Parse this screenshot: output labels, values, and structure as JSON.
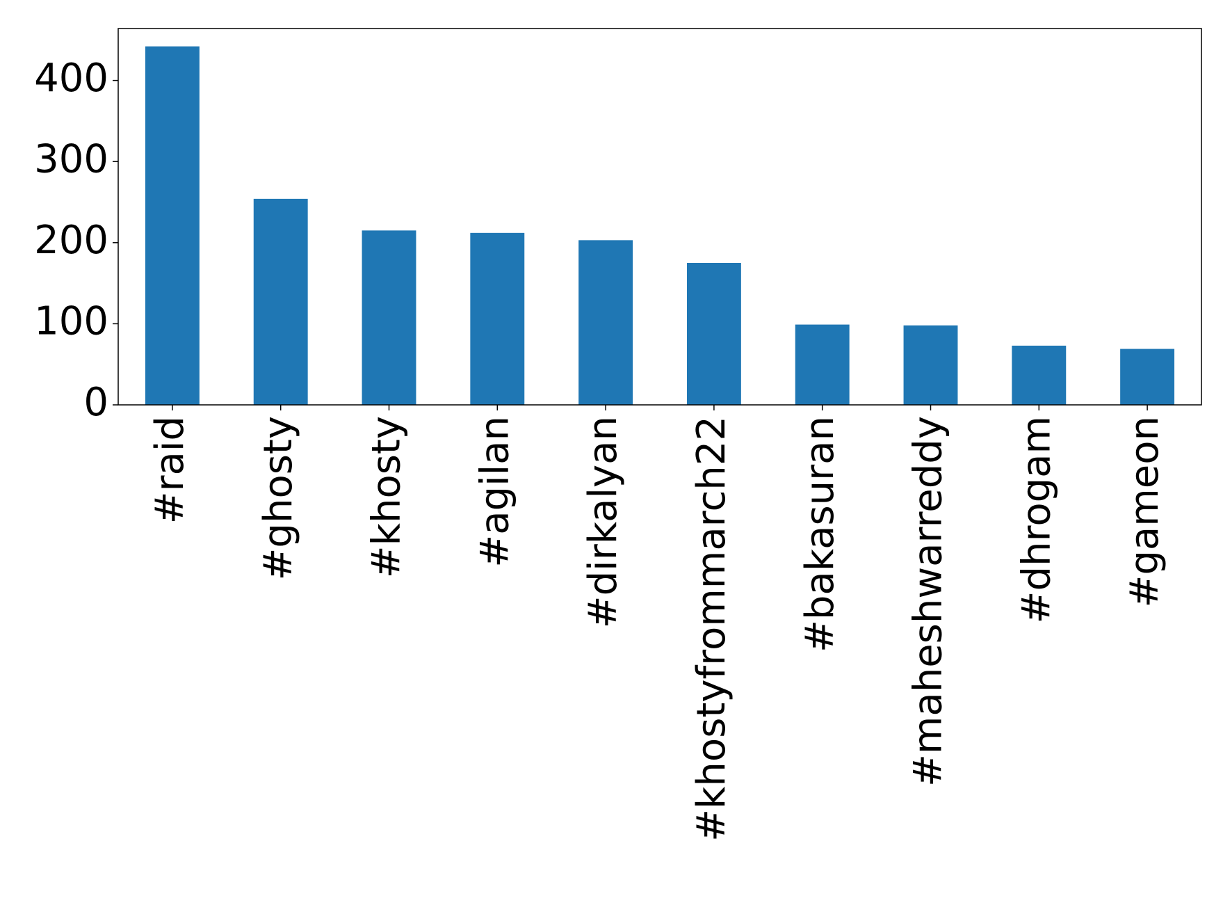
{
  "chart_data": {
    "type": "bar",
    "categories": [
      "#raid",
      "#ghosty",
      "#khosty",
      "#agilan",
      "#dirkalyan",
      "#khostyfrommarch22",
      "#bakasuran",
      "#maheshwarreddy",
      "#dhrogam",
      "#gameon"
    ],
    "values": [
      442,
      254,
      215,
      212,
      203,
      175,
      99,
      98,
      73,
      69
    ],
    "color": "#1f77b4",
    "ylim": [
      0,
      464
    ],
    "yticks": [
      0,
      100,
      200,
      300,
      400
    ],
    "grid": false
  }
}
